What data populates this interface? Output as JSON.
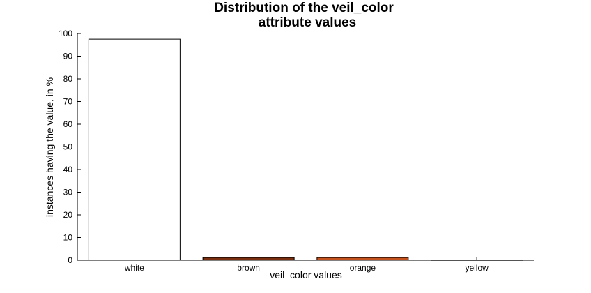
{
  "chart_data": {
    "type": "bar",
    "title_lines": [
      "Distribution of the veil_color",
      "attribute values"
    ],
    "xlabel": "veil_color values",
    "ylabel": "instances having the value, in %",
    "categories": [
      "white",
      "brown",
      "orange",
      "yellow"
    ],
    "values": [
      97.5,
      1.2,
      1.2,
      0.1
    ],
    "bar_colors": [
      "#ffffff",
      "#7a2e10",
      "#c4521f",
      "#f0c040"
    ],
    "ylim": [
      0,
      100
    ],
    "yticks": [
      0,
      10,
      20,
      30,
      40,
      50,
      60,
      70,
      80,
      90,
      100
    ],
    "grid": false,
    "legend": "none"
  }
}
